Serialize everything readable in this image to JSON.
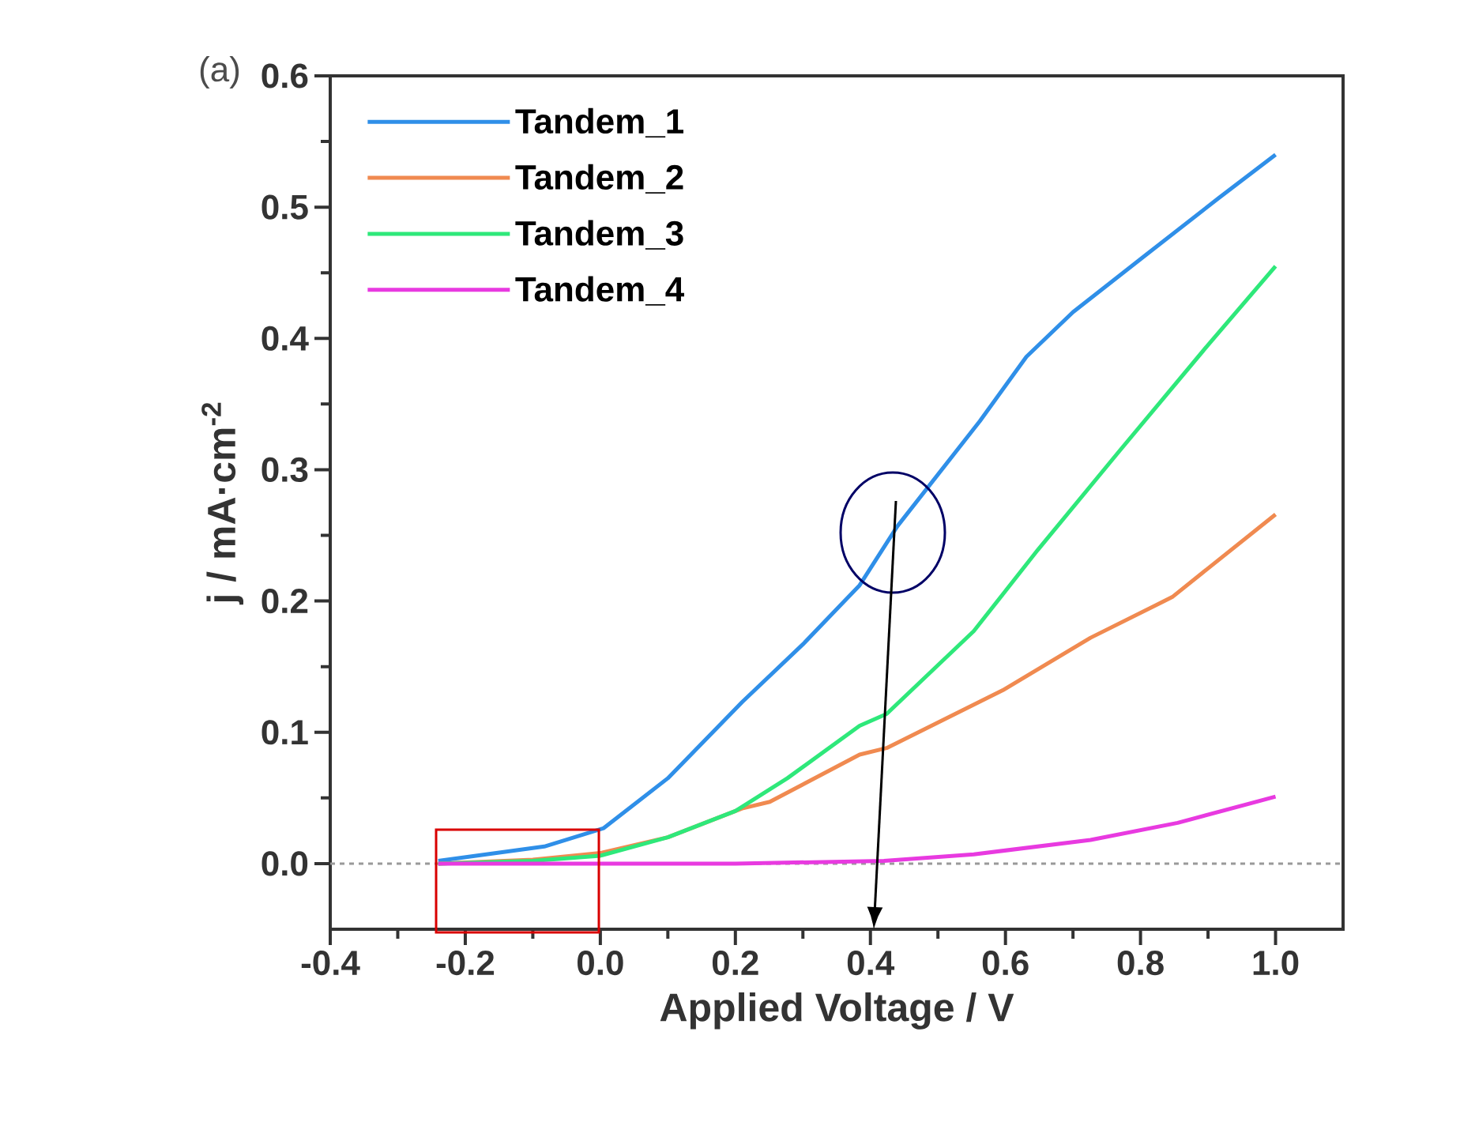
{
  "chart_data": {
    "type": "line",
    "xlabel": "Applied Voltage / V",
    "ylabel": "j / mA·cm$^{-2}$",
    "annotations": [
      "(a)"
    ],
    "xlim": [
      -0.4,
      1.1
    ],
    "ylim": [
      -0.05,
      0.6
    ],
    "xticks": [
      -0.4,
      -0.2,
      {
        "value": 0,
        "label": "0.0"
      },
      0.2,
      0.4,
      0.6,
      0.8,
      {
        "value": 1,
        "label": "1.0"
      }
    ],
    "yticks": [
      {
        "value": 0,
        "label": "0.0"
      },
      0.1,
      0.2,
      0.3,
      0.4,
      0.5,
      0.6
    ],
    "grid": false,
    "legend": "top left",
    "line_style": "solid",
    "marker": "none",
    "ref_lines": [
      {
        "axis": "y",
        "value": 0,
        "color": "#9a9a9a",
        "line_style": "dashed"
      }
    ],
    "series": [
      {
        "name": "Tandem_1",
        "color": "#2f8fe8",
        "x": [
          -0.24,
          -0.083,
          0.005,
          0.1,
          0.21,
          0.3,
          0.384,
          0.44,
          0.562,
          0.631,
          0.7,
          0.804,
          0.916,
          1.0
        ],
        "values": [
          0.002,
          0.013,
          0.027,
          0.065,
          0.123,
          0.167,
          0.212,
          0.257,
          0.337,
          0.386,
          0.42,
          0.462,
          0.507,
          0.54
        ]
      },
      {
        "name": "Tandem_2",
        "color": "#f08a50",
        "x": [
          -0.24,
          -0.1,
          0.0,
          0.1,
          0.21,
          0.251,
          0.384,
          0.424,
          0.596,
          0.726,
          0.847,
          1.0
        ],
        "values": [
          0.0,
          0.003,
          0.008,
          0.02,
          0.042,
          0.047,
          0.083,
          0.088,
          0.132,
          0.172,
          0.203,
          0.266
        ]
      },
      {
        "name": "Tandem_3",
        "color": "#2ee87a",
        "x": [
          -0.24,
          -0.1,
          0.0,
          0.1,
          0.2,
          0.277,
          0.384,
          0.424,
          0.553,
          0.648,
          0.77,
          0.9,
          1.0
        ],
        "values": [
          0.0,
          0.002,
          0.006,
          0.02,
          0.04,
          0.065,
          0.105,
          0.114,
          0.177,
          0.239,
          0.315,
          0.395,
          0.455
        ]
      },
      {
        "name": "Tandem_4",
        "color": "#e83ae0",
        "x": [
          -0.24,
          0.0,
          0.2,
          0.42,
          0.553,
          0.726,
          0.855,
          1.0
        ],
        "values": [
          0.0,
          0.0,
          0.0,
          0.002,
          0.007,
          0.018,
          0.031,
          0.051
        ]
      }
    ]
  }
}
